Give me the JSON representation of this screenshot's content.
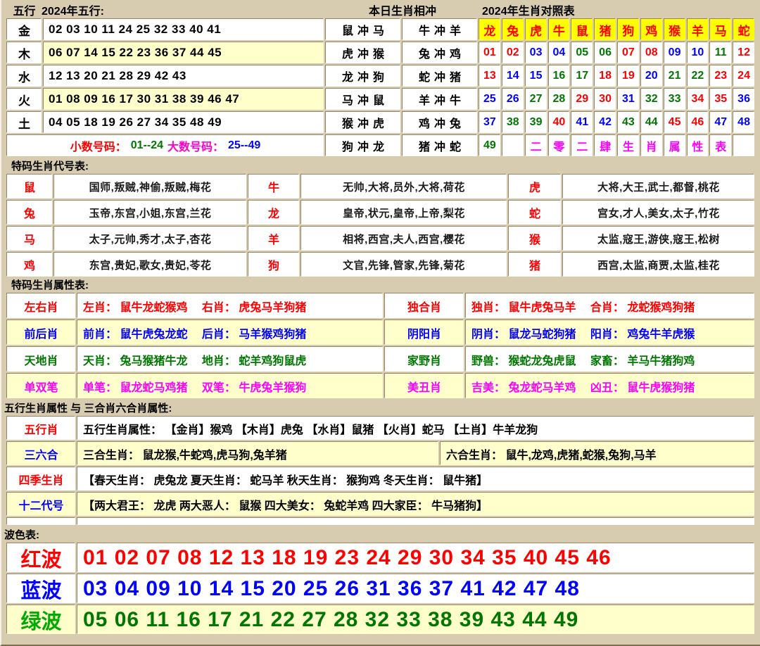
{
  "palette": {
    "background": "#d8ccb0",
    "cell": "#ffffff",
    "alt_row": "#ffffcc",
    "header_yellow": "#ffff00",
    "red": "#ff0000",
    "blue": "#0000ff",
    "green": "#007700",
    "magenta": "#ff00ff"
  },
  "top": {
    "col_label": "五行",
    "title": "2024年五行:",
    "rows": [
      {
        "label": "金",
        "numbers": "02 03 10 11 24 25 32 33 40 41",
        "alt": false
      },
      {
        "label": "木",
        "numbers": "06 07 14 15 22 23 36 37 44 45",
        "alt": true
      },
      {
        "label": "水",
        "numbers": "12 13 20 21 28 29 42 43",
        "alt": false
      },
      {
        "label": "火",
        "numbers": "01 08 09 16 17 30 31 38 39 46 47",
        "alt": true
      },
      {
        "label": "土",
        "numbers": "04 05 18 19 26 27 34 35 48 49",
        "alt": false
      }
    ],
    "footer": [
      {
        "text": "小数号码：",
        "color": "#ff0000"
      },
      {
        "text": "01--24",
        "color": "#007700"
      },
      {
        "text": "大数号码：",
        "color": "#ff00cc"
      },
      {
        "text": "25--49",
        "color": "#0000ff"
      }
    ]
  },
  "clash": {
    "title": "本日生肖相冲",
    "rows": [
      [
        "鼠冲马",
        "牛冲羊"
      ],
      [
        "虎冲猴",
        "兔冲鸡"
      ],
      [
        "龙冲狗",
        "蛇冲猪"
      ],
      [
        "马冲鼠",
        "羊冲牛"
      ],
      [
        "猴冲虎",
        "鸡冲兔"
      ],
      [
        "狗冲龙",
        "猪冲蛇"
      ]
    ]
  },
  "zodiac": {
    "title": "2024年生肖对照表",
    "headers": [
      "龙",
      "兔",
      "虎",
      "牛",
      "鼠",
      "猪",
      "狗",
      "鸡",
      "猴",
      "羊",
      "马",
      "蛇"
    ],
    "number_rows": [
      [
        "01",
        "02",
        "03",
        "04",
        "05",
        "06",
        "07",
        "08",
        "09",
        "10",
        "11",
        "12"
      ],
      [
        "13",
        "14",
        "15",
        "16",
        "17",
        "18",
        "19",
        "20",
        "21",
        "22",
        "23",
        "24"
      ],
      [
        "25",
        "26",
        "27",
        "28",
        "29",
        "30",
        "31",
        "32",
        "33",
        "34",
        "35",
        "36"
      ],
      [
        "37",
        "38",
        "39",
        "40",
        "41",
        "42",
        "43",
        "44",
        "45",
        "46",
        "47",
        "48"
      ],
      [
        "49",
        "",
        "二",
        "零",
        "二",
        "肆",
        "生",
        "肖",
        "属",
        "性",
        "表",
        ""
      ]
    ],
    "year_chars_color": "#ff00ff"
  },
  "daihao": {
    "title": "特码生肖代号表:",
    "rows": [
      [
        {
          "z": "鼠",
          "d": "国师,叛贼,神偷,叛贼,梅花"
        },
        {
          "z": "牛",
          "d": "无帅,大将,员外,大将,荷花"
        },
        {
          "z": "虎",
          "d": "大将,大王,武士,都督,桃花"
        }
      ],
      [
        {
          "z": "兔",
          "d": "玉帝,东宫,小姐,东宫,兰花"
        },
        {
          "z": "龙",
          "d": "皇帝,状元,皇帝,上帝,梨花"
        },
        {
          "z": "蛇",
          "d": "宫女,才人,美女,太子,竹花"
        }
      ],
      [
        {
          "z": "马",
          "d": "太子,元帅,秀才,太子,杏花"
        },
        {
          "z": "羊",
          "d": "相将,西宫,夫人,西宫,樱花"
        },
        {
          "z": "猴",
          "d": "太监,寇王,游侠,寇王,松树"
        }
      ],
      [
        {
          "z": "鸡",
          "d": "东宫,贵妃,歌女,贵妃,苓花"
        },
        {
          "z": "狗",
          "d": "文官,先锋,管家,先锋,菊花"
        },
        {
          "z": "猪",
          "d": "西宫,太监,商贾,太监,桂花"
        }
      ]
    ]
  },
  "shuxing": {
    "title": "特码生肖属性表:",
    "rows": [
      {
        "color": "#ff0000",
        "alt": false,
        "left_label": "左右肖",
        "left_text": "左肖： 鼠牛龙蛇猴鸡　 右肖： 虎兔马羊狗猪",
        "right_label": "独合肖",
        "right_text": "独肖： 鼠牛虎兔马羊　 合肖： 龙蛇猴鸡狗猪"
      },
      {
        "color": "#0000ff",
        "alt": true,
        "left_label": "前后肖",
        "left_text": "前肖： 鼠牛虎兔龙蛇　 后肖： 马羊猴鸡狗猪",
        "right_label": "阴阳肖",
        "right_text": "阴肖： 鼠龙马蛇狗猪　 阳肖： 鸡兔牛羊虎猴"
      },
      {
        "color": "#007700",
        "alt": false,
        "left_label": "天地肖",
        "left_text": "天肖： 兔马猴猪牛龙　 地肖： 蛇羊鸡狗鼠虎",
        "right_label": "家野肖",
        "right_text": "野兽： 猴蛇龙兔虎鼠　 家畜： 羊马牛猪狗鸡"
      },
      {
        "color": "#ff00ff",
        "alt": true,
        "left_label": "单双笔",
        "left_text": "单笔： 鼠龙蛇马鸡猪　 双笔： 牛虎兔羊猴狗",
        "right_label": "美丑肖",
        "right_text": "吉美： 兔龙蛇马羊鸡　 凶丑： 鼠牛虎猴狗猪"
      }
    ]
  },
  "wuxing": {
    "title": "五行生肖属性 与 三合肖六合肖属性:",
    "rows": [
      {
        "label": "五行肖",
        "label_color": "#ff0000",
        "alt": false,
        "cells": [
          {
            "text": "五行生肖属性： 【金肖】猴鸡 【木肖】虎兔 【水肖】鼠猪 【火肖】蛇马 【土肖】牛羊龙狗"
          }
        ]
      },
      {
        "label": "三六合",
        "label_color": "#0000ff",
        "alt": true,
        "cells": [
          {
            "text": "三合生肖： 鼠龙猴,牛蛇鸡,虎马狗,兔羊猪"
          },
          {
            "text": "六合生肖： 鼠牛,龙鸡,虎猪,蛇猴,兔狗,马羊"
          }
        ]
      },
      {
        "label": "四季生肖",
        "label_color": "#ff0000",
        "alt": false,
        "cells": [
          {
            "text": "【春天生肖： 虎兔龙 夏天生肖： 蛇马羊 秋天生肖： 猴狗鸡 冬天生肖： 鼠牛猪】"
          }
        ]
      },
      {
        "label": "十二代号",
        "label_color": "#0000ff",
        "alt": true,
        "cells": [
          {
            "text": "【两大君王： 龙虎 两大恶人： 鼠猴 四大美女： 兔蛇羊鸡 四大家臣： 牛马猪狗】"
          }
        ]
      }
    ]
  },
  "bose": {
    "title": "波色表:",
    "rows": [
      {
        "label": "红波",
        "label_color": "#ff0000",
        "num_color": "#ff0000",
        "alt": false,
        "numbers": "01 02 07 08 12 13 18 19 23 24 29 30 34 35 40 45 46"
      },
      {
        "label": "蓝波",
        "label_color": "#0000ff",
        "num_color": "#0000ff",
        "alt": false,
        "numbers": "03 04 09 10 14 15 20 25 26 31 36 37 41 42 47 48"
      },
      {
        "label": "绿波",
        "label_color": "#00aa00",
        "num_color": "#007700",
        "alt": true,
        "numbers": "05 06 11 16 17 21 22 27 28 32 33 38 39 43 44 49"
      }
    ]
  }
}
